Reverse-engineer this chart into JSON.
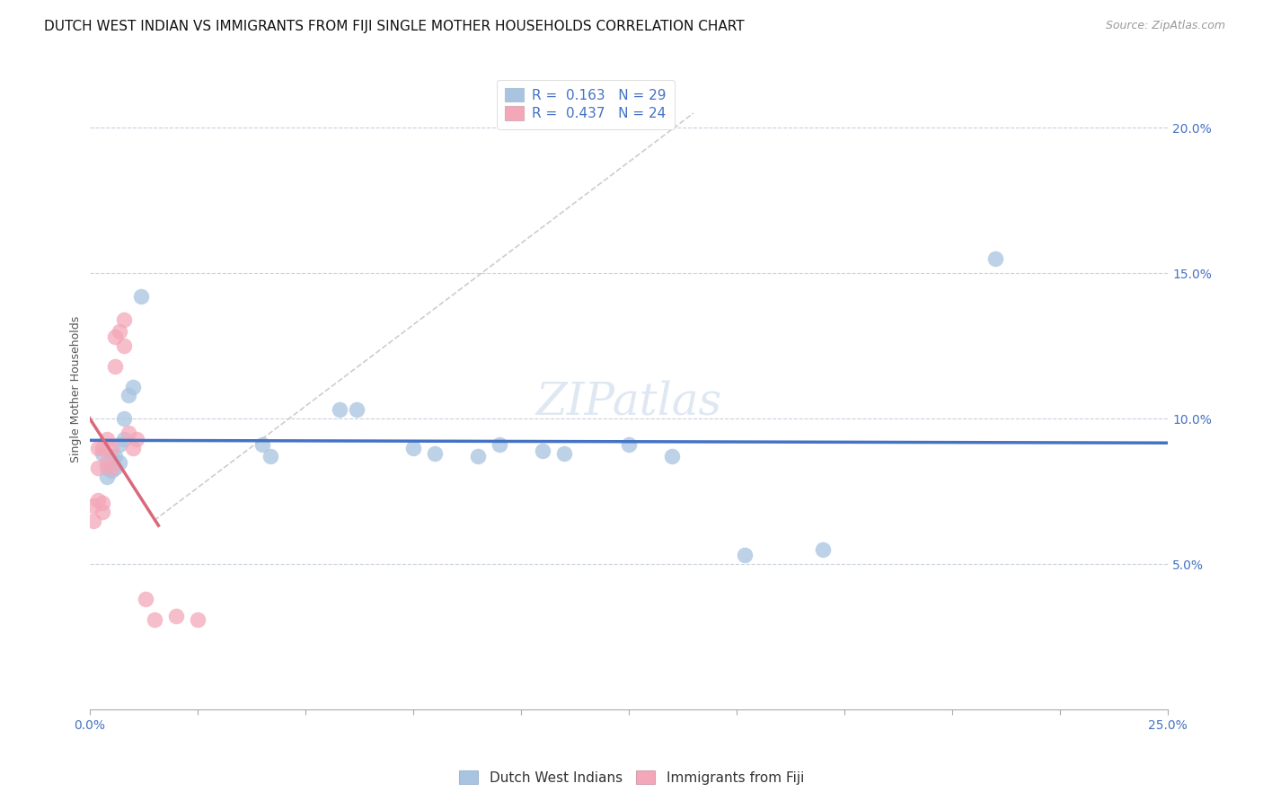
{
  "title": "DUTCH WEST INDIAN VS IMMIGRANTS FROM FIJI SINGLE MOTHER HOUSEHOLDS CORRELATION CHART",
  "source": "Source: ZipAtlas.com",
  "ylabel": "Single Mother Households",
  "xlim": [
    0.0,
    0.25
  ],
  "ylim": [
    0.0,
    0.22
  ],
  "yticks": [
    0.05,
    0.1,
    0.15,
    0.2
  ],
  "ytick_labels": [
    "5.0%",
    "10.0%",
    "15.0%",
    "20.0%"
  ],
  "blue_R": 0.163,
  "blue_N": 29,
  "pink_R": 0.437,
  "pink_N": 24,
  "blue_color": "#a8c4e0",
  "pink_color": "#f4a7b9",
  "blue_line_color": "#4472c4",
  "pink_line_color": "#d9687a",
  "diag_line_color": "#c8c8c8",
  "legend_label_blue": "Dutch West Indians",
  "legend_label_pink": "Immigrants from Fiji",
  "watermark": "ZIPatlas",
  "blue_points_x": [
    0.003,
    0.004,
    0.004,
    0.005,
    0.005,
    0.006,
    0.006,
    0.007,
    0.007,
    0.008,
    0.008,
    0.009,
    0.01,
    0.012,
    0.04,
    0.042,
    0.058,
    0.062,
    0.075,
    0.08,
    0.09,
    0.095,
    0.105,
    0.11,
    0.125,
    0.135,
    0.152,
    0.17,
    0.21
  ],
  "blue_points_y": [
    0.088,
    0.083,
    0.08,
    0.087,
    0.082,
    0.087,
    0.083,
    0.091,
    0.085,
    0.093,
    0.1,
    0.108,
    0.111,
    0.142,
    0.091,
    0.087,
    0.103,
    0.103,
    0.09,
    0.088,
    0.087,
    0.091,
    0.089,
    0.088,
    0.091,
    0.087,
    0.053,
    0.055,
    0.155
  ],
  "pink_points_x": [
    0.001,
    0.001,
    0.002,
    0.002,
    0.002,
    0.003,
    0.003,
    0.003,
    0.004,
    0.004,
    0.005,
    0.005,
    0.006,
    0.006,
    0.007,
    0.008,
    0.008,
    0.009,
    0.01,
    0.011,
    0.013,
    0.015,
    0.02,
    0.025
  ],
  "pink_points_y": [
    0.07,
    0.065,
    0.09,
    0.083,
    0.072,
    0.09,
    0.071,
    0.068,
    0.093,
    0.085,
    0.09,
    0.083,
    0.128,
    0.118,
    0.13,
    0.134,
    0.125,
    0.095,
    0.09,
    0.093,
    0.038,
    0.031,
    0.032,
    0.031
  ],
  "title_fontsize": 11,
  "axis_label_fontsize": 9,
  "tick_fontsize": 10,
  "legend_fontsize": 11,
  "source_fontsize": 9,
  "watermark_fontsize": 36
}
